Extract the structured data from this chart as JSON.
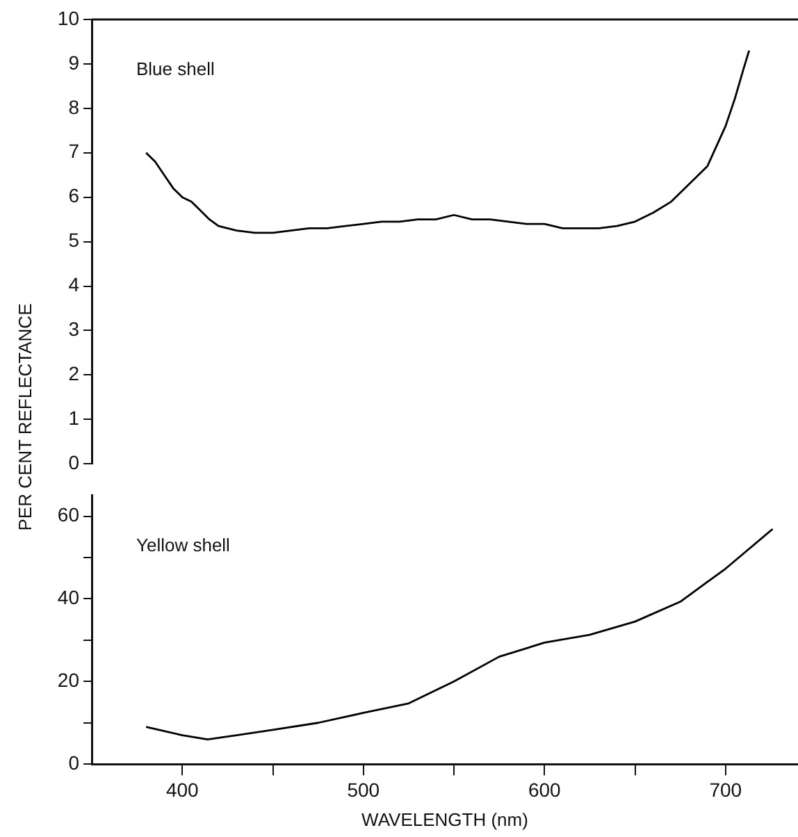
{
  "chart_data": [
    {
      "type": "line",
      "ylabel": "PER CENT REFLECTANCE",
      "annotations": [
        "Blue shell"
      ],
      "xlim": [
        350,
        740
      ],
      "ylim": [
        0,
        10
      ],
      "yticks": [
        0,
        1,
        2,
        3,
        4,
        5,
        6,
        7,
        8,
        9,
        10
      ],
      "tick_labels": "y",
      "grid": false,
      "legend": false,
      "marker": "none",
      "line_style": "solid",
      "series": [
        {
          "color": "#000000",
          "x": [
            380,
            385,
            390,
            395,
            400,
            405,
            410,
            415,
            420,
            430,
            440,
            450,
            460,
            470,
            480,
            490,
            500,
            510,
            520,
            530,
            540,
            550,
            560,
            570,
            580,
            590,
            600,
            610,
            620,
            630,
            640,
            650,
            660,
            670,
            680,
            690,
            700,
            705,
            710,
            713
          ],
          "values": [
            7.0,
            6.8,
            6.5,
            6.2,
            6.0,
            5.9,
            5.7,
            5.5,
            5.35,
            5.25,
            5.2,
            5.2,
            5.25,
            5.3,
            5.3,
            5.35,
            5.4,
            5.45,
            5.45,
            5.5,
            5.5,
            5.6,
            5.5,
            5.5,
            5.45,
            5.4,
            5.4,
            5.3,
            5.3,
            5.3,
            5.35,
            5.45,
            5.65,
            5.9,
            6.3,
            6.7,
            7.6,
            8.2,
            8.9,
            9.3
          ]
        }
      ]
    },
    {
      "type": "line",
      "xlabel": "WAVELENGTH (nm)",
      "annotations": [
        "Yellow shell"
      ],
      "xlim": [
        350,
        740
      ],
      "xticks": [
        400,
        {
          "value": 450,
          "label": null
        },
        500,
        {
          "value": 550,
          "label": null
        },
        600,
        {
          "value": 650,
          "label": null
        },
        700
      ],
      "ylim": [
        0,
        65
      ],
      "yticks": [
        0,
        {
          "value": 10,
          "label": null
        },
        20,
        {
          "value": 30,
          "label": null
        },
        40,
        {
          "value": 50,
          "label": null
        },
        60
      ],
      "grid": false,
      "legend": false,
      "marker": "none",
      "line_style": "solid",
      "series": [
        {
          "color": "#000000",
          "x": [
            380,
            390,
            400,
            414,
            430,
            450,
            475,
            500,
            525,
            550,
            575,
            600,
            625,
            650,
            675,
            700,
            726
          ],
          "values": [
            9,
            8,
            7,
            6,
            7,
            8.3,
            10,
            12.4,
            14.7,
            20,
            26,
            29.4,
            31.3,
            34.5,
            39.3,
            47.3,
            56.9
          ]
        }
      ]
    }
  ]
}
